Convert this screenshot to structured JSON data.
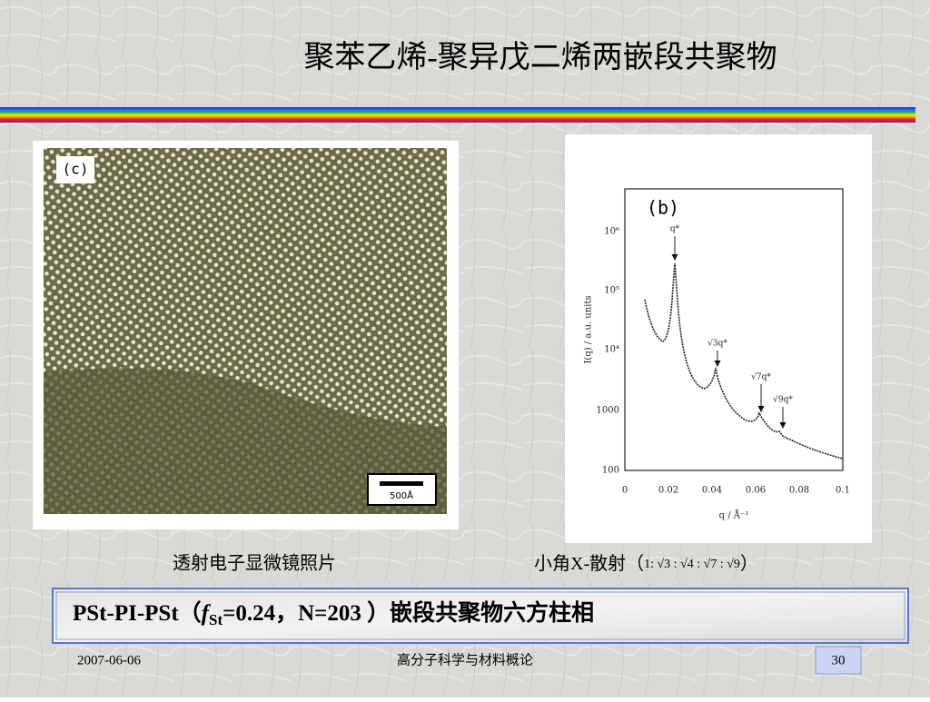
{
  "title": "聚苯乙烯-聚异戊二烯两嵌段共聚物",
  "figures": [
    {
      "panel_label": "(c)",
      "scale_bar": "500Å",
      "caption": "透射电子显微镜照片"
    },
    {
      "panel_label": "(b)",
      "x_label": "q / Å⁻¹",
      "y_label": "I(q) / a.u. units",
      "xticks": [
        "0",
        "0.02",
        "0.04",
        "0.06",
        "0.08",
        "0.1"
      ],
      "yticks": [
        "10⁶",
        "10⁵",
        "10⁴",
        "1000",
        "100"
      ],
      "peak_labels": [
        "q*",
        "√3q*",
        "√7q*",
        "√9q*"
      ],
      "caption_main": "小角X-散射（",
      "caption_ratio": "1: √3 : √4 : √7 : √9",
      "caption_end": "）"
    }
  ],
  "box": {
    "prefix": "PSt-PI-PSt（",
    "symbol": "f",
    "subscript": "St",
    "suffix": "=0.24，N=203 ）嵌段共聚物六方柱相"
  },
  "footer": {
    "date": "2007-06-06",
    "course": "高分子科学与材料概论",
    "page": "30"
  }
}
